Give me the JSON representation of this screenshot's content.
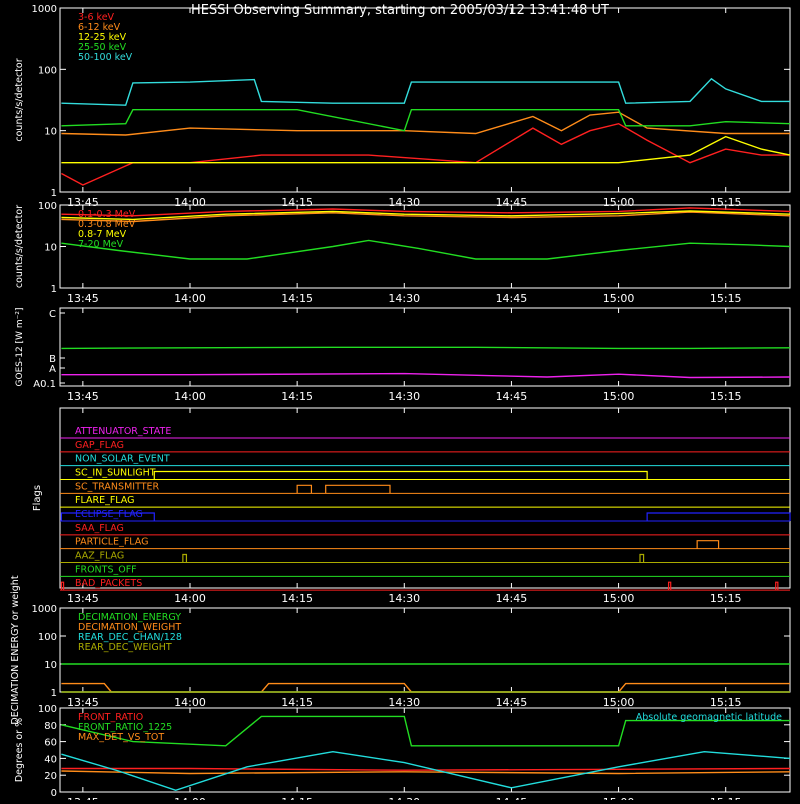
{
  "chart_data": {
    "type": "line",
    "title": "HESSI Observing Summary, starting on 2005/03/12 13:41:48 UT",
    "time_axis": {
      "start": "13:41:48",
      "end": "15:24:00",
      "ticks": [
        "13:45",
        "14:00",
        "14:15",
        "14:30",
        "14:45",
        "15:00",
        "15:15"
      ]
    },
    "panels": [
      {
        "id": "count-rates-low",
        "type": "line",
        "ylabel": "counts/s/detector",
        "yscale": "log",
        "ylim": [
          1,
          1000
        ],
        "yticks": [
          "1",
          "10",
          "100",
          "1000"
        ],
        "legend_position": "top-left",
        "series": [
          {
            "name": "3-6 keV",
            "color": "#ff2020",
            "points": [
              [
                "13:42",
                2
              ],
              [
                "13:45",
                1.3
              ],
              [
                "13:52",
                3
              ],
              [
                "14:00",
                3
              ],
              [
                "14:10",
                4
              ],
              [
                "14:25",
                4
              ],
              [
                "14:40",
                3
              ],
              [
                "14:48",
                11
              ],
              [
                "14:52",
                6
              ],
              [
                "14:56",
                10
              ],
              [
                "15:00",
                13
              ],
              [
                "15:04",
                7
              ],
              [
                "15:10",
                3
              ],
              [
                "15:15",
                5
              ],
              [
                "15:20",
                4
              ],
              [
                "15:24",
                4
              ]
            ]
          },
          {
            "name": "6-12 keV",
            "color": "#ff8c1a",
            "points": [
              [
                "13:42",
                9
              ],
              [
                "13:51",
                8.5
              ],
              [
                "14:00",
                11
              ],
              [
                "14:15",
                10
              ],
              [
                "14:30",
                10
              ],
              [
                "14:40",
                9
              ],
              [
                "14:48",
                17
              ],
              [
                "14:52",
                10
              ],
              [
                "14:56",
                18
              ],
              [
                "15:00",
                20
              ],
              [
                "15:04",
                11
              ],
              [
                "15:15",
                9
              ],
              [
                "15:24",
                9
              ]
            ]
          },
          {
            "name": "12-25 keV",
            "color": "#ffff00",
            "points": [
              [
                "13:42",
                3
              ],
              [
                "14:00",
                3
              ],
              [
                "14:15",
                3
              ],
              [
                "14:30",
                3
              ],
              [
                "14:45",
                3
              ],
              [
                "15:00",
                3
              ],
              [
                "15:10",
                4
              ],
              [
                "15:15",
                8
              ],
              [
                "15:20",
                5
              ],
              [
                "15:24",
                4
              ]
            ]
          },
          {
            "name": "25-50 keV",
            "color": "#22dd22",
            "points": [
              [
                "13:42",
                12
              ],
              [
                "13:51",
                13
              ],
              [
                "13:52",
                22
              ],
              [
                "14:00",
                22
              ],
              [
                "14:15",
                22
              ],
              [
                "14:30",
                10
              ],
              [
                "14:31",
                22
              ],
              [
                "14:45",
                22
              ],
              [
                "15:00",
                22
              ],
              [
                "15:01",
                12
              ],
              [
                "15:10",
                12
              ],
              [
                "15:15",
                14
              ],
              [
                "15:24",
                13
              ]
            ]
          },
          {
            "name": "50-100 keV",
            "color": "#33dddd",
            "points": [
              [
                "13:42",
                28
              ],
              [
                "13:51",
                26
              ],
              [
                "13:52",
                60
              ],
              [
                "14:00",
                62
              ],
              [
                "14:09",
                68
              ],
              [
                "14:10",
                30
              ],
              [
                "14:20",
                28
              ],
              [
                "14:30",
                28
              ],
              [
                "14:31",
                62
              ],
              [
                "14:45",
                62
              ],
              [
                "15:00",
                62
              ],
              [
                "15:01",
                28
              ],
              [
                "15:10",
                30
              ],
              [
                "15:13",
                70
              ],
              [
                "15:15",
                48
              ],
              [
                "15:20",
                30
              ],
              [
                "15:24",
                30
              ]
            ]
          }
        ]
      },
      {
        "id": "count-rates-high",
        "type": "line",
        "ylabel": "counts/s/detector",
        "yscale": "log",
        "ylim": [
          1,
          100
        ],
        "yticks": [
          "1",
          "10",
          "100"
        ],
        "legend_position": "top-left",
        "series": [
          {
            "name": "0.1-0.3 MeV",
            "color": "#ff2020",
            "points": [
              [
                "13:42",
                60
              ],
              [
                "13:52",
                55
              ],
              [
                "14:05",
                70
              ],
              [
                "14:20",
                80
              ],
              [
                "14:30",
                70
              ],
              [
                "14:45",
                65
              ],
              [
                "15:00",
                70
              ],
              [
                "15:10",
                85
              ],
              [
                "15:24",
                70
              ]
            ]
          },
          {
            "name": "0.3-0.8 MeV",
            "color": "#ff8c1a",
            "points": [
              [
                "13:42",
                45
              ],
              [
                "13:52",
                40
              ],
              [
                "14:05",
                55
              ],
              [
                "14:20",
                65
              ],
              [
                "14:30",
                55
              ],
              [
                "14:45",
                50
              ],
              [
                "15:00",
                55
              ],
              [
                "15:10",
                68
              ],
              [
                "15:24",
                55
              ]
            ]
          },
          {
            "name": "0.8-7 MeV",
            "color": "#ffff00",
            "points": [
              [
                "13:42",
                50
              ],
              [
                "13:52",
                45
              ],
              [
                "14:05",
                60
              ],
              [
                "14:20",
                70
              ],
              [
                "14:30",
                60
              ],
              [
                "14:45",
                55
              ],
              [
                "15:00",
                62
              ],
              [
                "15:10",
                72
              ],
              [
                "15:24",
                60
              ]
            ]
          },
          {
            "name": "7-20 MeV",
            "color": "#22dd22",
            "points": [
              [
                "13:42",
                12
              ],
              [
                "13:50",
                8
              ],
              [
                "14:00",
                5
              ],
              [
                "14:08",
                5
              ],
              [
                "14:20",
                10
              ],
              [
                "14:25",
                14
              ],
              [
                "14:32",
                9
              ],
              [
                "14:40",
                5
              ],
              [
                "14:50",
                5
              ],
              [
                "15:00",
                8
              ],
              [
                "15:10",
                12
              ],
              [
                "15:18",
                11
              ],
              [
                "15:24",
                10
              ]
            ]
          }
        ]
      },
      {
        "id": "goes",
        "type": "line",
        "ylabel": "GOES-12 [W m⁻²]",
        "yscale": "log",
        "yticks": [
          "A0.1",
          "A",
          "B",
          "C"
        ],
        "series": [
          {
            "name": "",
            "color": "#22dd22",
            "points": [
              [
                "13:42",
                0.35
              ],
              [
                "14:00",
                0.36
              ],
              [
                "14:20",
                0.37
              ],
              [
                "14:40",
                0.37
              ],
              [
                "15:00",
                0.35
              ],
              [
                "15:10",
                0.35
              ],
              [
                "15:24",
                0.36
              ]
            ]
          },
          {
            "name": "",
            "color": "#ee22ee",
            "points": [
              [
                "13:42",
                -0.12
              ],
              [
                "14:00",
                -0.12
              ],
              [
                "14:30",
                -0.1
              ],
              [
                "14:43",
                -0.14
              ],
              [
                "14:50",
                -0.16
              ],
              [
                "15:00",
                -0.11
              ],
              [
                "15:10",
                -0.17
              ],
              [
                "15:24",
                -0.16
              ]
            ]
          }
        ]
      },
      {
        "id": "flags",
        "type": "line",
        "ylabel": "Flags",
        "flags": [
          {
            "label": "ATTENUATOR_STATE",
            "color": "#ee22ee",
            "on": []
          },
          {
            "label": "GAP_FLAG",
            "color": "#ff2020",
            "on": []
          },
          {
            "label": "NON_SOLAR_EVENT",
            "color": "#22dddd",
            "on": []
          },
          {
            "label": "SC_IN_SUNLIGHT",
            "color": "#ffff00",
            "on": [
              [
                "13:55",
                "15:04"
              ]
            ]
          },
          {
            "label": "SC_TRANSMITTER",
            "color": "#ff8c1a",
            "on": [
              [
                "14:15",
                "14:17"
              ],
              [
                "14:19",
                "14:28"
              ]
            ]
          },
          {
            "label": "FLARE_FLAG",
            "color": "#ffff00",
            "on": []
          },
          {
            "label": "ECLIPSE_FLAG",
            "color": "#2222ff",
            "on": [
              [
                "13:42",
                "13:55"
              ],
              [
                "15:04",
                "15:24"
              ]
            ]
          },
          {
            "label": "SAA_FLAG",
            "color": "#ff2020",
            "on": []
          },
          {
            "label": "PARTICLE_FLAG",
            "color": "#ff8c1a",
            "on": [
              [
                "15:11",
                "15:14"
              ]
            ]
          },
          {
            "label": "AAZ_FLAG",
            "color": "#aaaa00",
            "on": [
              [
                "13:59",
                "13:59.5"
              ],
              [
                "15:03",
                "15:03.5"
              ]
            ]
          },
          {
            "label": "FRONTS_OFF",
            "color": "#22dd22",
            "on": []
          },
          {
            "label": "BAD_PACKETS",
            "color": "#ff2020",
            "on": [
              [
                "13:42",
                "13:42.3"
              ],
              [
                "15:07",
                "15:07.3"
              ],
              [
                "15:22",
                "15:22.3"
              ]
            ]
          }
        ]
      },
      {
        "id": "decimation",
        "type": "line",
        "ylabel": "DECIMATION ENERGY or weight",
        "yscale": "log",
        "ylim": [
          1,
          1000
        ],
        "yticks": [
          "1",
          "10",
          "100",
          "1000"
        ],
        "legend_position": "top-left",
        "series": [
          {
            "name": "DECIMATION_ENERGY",
            "color": "#22dd22",
            "points": [
              [
                "13:42",
                10
              ],
              [
                "15:24",
                10
              ]
            ]
          },
          {
            "name": "DECIMATION_WEIGHT",
            "color": "#ff8c1a",
            "points": [
              [
                "13:42",
                2
              ],
              [
                "13:48",
                2
              ],
              [
                "13:49",
                1
              ],
              [
                "14:10",
                1
              ],
              [
                "14:11",
                2
              ],
              [
                "14:30",
                2
              ],
              [
                "14:31",
                1
              ],
              [
                "15:00",
                1
              ],
              [
                "15:01",
                2
              ],
              [
                "15:24",
                2
              ]
            ]
          },
          {
            "name": "REAR_DEC_CHAN/128",
            "color": "#22dddd",
            "points": [
              [
                "13:42",
                1
              ],
              [
                "15:24",
                1
              ]
            ]
          },
          {
            "name": "REAR_DEC_WEIGHT",
            "color": "#aaaa00",
            "points": [
              [
                "13:42",
                1
              ],
              [
                "15:24",
                1
              ]
            ]
          }
        ]
      },
      {
        "id": "ratios",
        "type": "line",
        "ylabel": "Degrees or %",
        "ylim": [
          0,
          100
        ],
        "yticks": [
          "0",
          "20",
          "40",
          "60",
          "80",
          "100"
        ],
        "legend_position": "top-left",
        "series": [
          {
            "name": "FRONT_RATIO",
            "color": "#ff2020",
            "points": [
              [
                "13:42",
                28
              ],
              [
                "14:00",
                28
              ],
              [
                "14:30",
                26
              ],
              [
                "15:00",
                27
              ],
              [
                "15:24",
                28
              ]
            ]
          },
          {
            "name": "FRONT_RATIO_1225",
            "color": "#22dd22",
            "points": [
              [
                "13:42",
                80
              ],
              [
                "13:52",
                60
              ],
              [
                "14:05",
                55
              ],
              [
                "14:10",
                90
              ],
              [
                "14:30",
                90
              ],
              [
                "14:31",
                55
              ],
              [
                "15:00",
                55
              ],
              [
                "15:01",
                85
              ],
              [
                "15:24",
                85
              ]
            ]
          },
          {
            "name": "MAX_DET_VS_TOT",
            "color": "#ff8c1a",
            "points": [
              [
                "13:42",
                25
              ],
              [
                "14:00",
                22
              ],
              [
                "14:30",
                24
              ],
              [
                "15:00",
                22
              ],
              [
                "15:24",
                24
              ]
            ]
          },
          {
            "name": "Absolute geomagnetic latitude",
            "color": "#22dddd",
            "points": [
              [
                "13:42",
                45
              ],
              [
                "13:50",
                25
              ],
              [
                "13:58",
                2
              ],
              [
                "14:08",
                30
              ],
              [
                "14:20",
                48
              ],
              [
                "14:30",
                35
              ],
              [
                "14:45",
                5
              ],
              [
                "15:00",
                30
              ],
              [
                "15:12",
                48
              ],
              [
                "15:24",
                40
              ]
            ]
          }
        ]
      }
    ]
  }
}
